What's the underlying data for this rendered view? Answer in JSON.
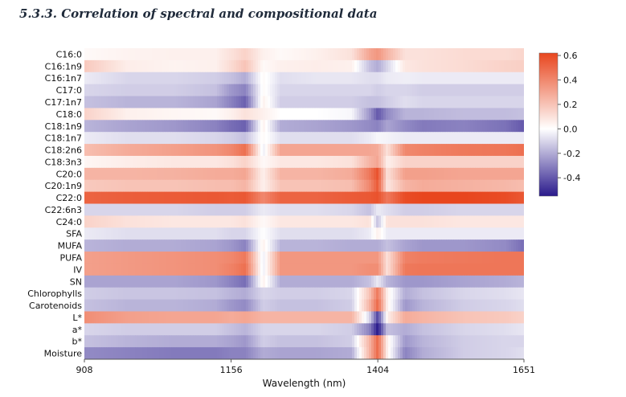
{
  "section": {
    "title": "5.3.3. Correlation of spectral and compositional data"
  },
  "chart_data": {
    "type": "heatmap",
    "title": "",
    "xlabel": "Wavelength (nm)",
    "ylabel": "",
    "xlim": [
      908,
      1651
    ],
    "xticks": [
      908,
      1156,
      1404,
      1651
    ],
    "grid": false,
    "colorbar": {
      "range": [
        -0.55,
        0.62
      ],
      "ticks": [
        -0.4,
        -0.2,
        0.0,
        0.2,
        0.4,
        0.6
      ],
      "tick_labels": [
        "-0.4",
        "-0.2",
        "0.0",
        "0.2",
        "0.4",
        "0.6"
      ],
      "colors": {
        "negative": "#2a1a8c",
        "zero": "#ffffff",
        "positive": "#e8461e"
      },
      "placement": "right"
    },
    "x_sample_wavelengths": [
      908,
      980,
      1060,
      1130,
      1156,
      1180,
      1210,
      1240,
      1300,
      1360,
      1390,
      1404,
      1420,
      1450,
      1480,
      1550,
      1620,
      1651
    ],
    "rows": [
      {
        "name": "C16:0",
        "values": [
          0.02,
          0.04,
          0.05,
          0.05,
          0.1,
          0.15,
          0.05,
          0.02,
          0.05,
          0.1,
          0.3,
          0.35,
          0.25,
          0.1,
          0.1,
          0.12,
          0.12,
          0.14
        ]
      },
      {
        "name": "C16:1n9",
        "values": [
          0.18,
          0.06,
          0.04,
          0.05,
          0.12,
          0.2,
          0.02,
          0.05,
          0.06,
          0.05,
          -0.15,
          -0.2,
          -0.1,
          0.08,
          0.1,
          0.12,
          0.15,
          0.16
        ]
      },
      {
        "name": "C16:1n7",
        "values": [
          -0.05,
          -0.1,
          -0.1,
          -0.12,
          -0.15,
          -0.2,
          0.02,
          -0.08,
          -0.06,
          -0.06,
          -0.08,
          -0.08,
          -0.05,
          -0.04,
          -0.05,
          -0.05,
          -0.05,
          -0.05
        ]
      },
      {
        "name": "C17:0",
        "values": [
          -0.1,
          -0.12,
          -0.12,
          -0.15,
          -0.25,
          -0.3,
          0.02,
          -0.1,
          -0.1,
          -0.1,
          -0.1,
          -0.12,
          -0.1,
          -0.1,
          -0.12,
          -0.12,
          -0.12,
          -0.12
        ]
      },
      {
        "name": "C17:1n7",
        "values": [
          -0.15,
          -0.18,
          -0.18,
          -0.22,
          -0.3,
          -0.38,
          0.05,
          -0.12,
          -0.12,
          -0.12,
          -0.15,
          -0.15,
          -0.12,
          -0.08,
          -0.1,
          -0.1,
          -0.1,
          -0.1
        ]
      },
      {
        "name": "C18:0",
        "values": [
          0.15,
          0.05,
          0.03,
          0.02,
          0.05,
          0.1,
          0.05,
          0.0,
          0.0,
          -0.02,
          -0.25,
          -0.4,
          -0.28,
          -0.18,
          -0.18,
          -0.16,
          -0.16,
          -0.15
        ]
      },
      {
        "name": "C18:1n9",
        "values": [
          -0.18,
          -0.22,
          -0.25,
          -0.3,
          -0.35,
          -0.38,
          0.05,
          -0.2,
          -0.22,
          -0.25,
          -0.28,
          -0.3,
          -0.22,
          -0.28,
          -0.32,
          -0.3,
          -0.34,
          -0.4
        ]
      },
      {
        "name": "C18:1n7",
        "values": [
          -0.05,
          -0.08,
          -0.08,
          -0.1,
          -0.12,
          -0.15,
          0.02,
          -0.08,
          -0.08,
          -0.08,
          -0.05,
          -0.02,
          -0.03,
          -0.05,
          -0.05,
          -0.05,
          -0.05,
          -0.05
        ]
      },
      {
        "name": "C18:2n6",
        "values": [
          0.22,
          0.28,
          0.32,
          0.36,
          0.4,
          0.48,
          -0.05,
          0.3,
          0.3,
          0.3,
          0.3,
          0.28,
          0.1,
          0.4,
          0.42,
          0.45,
          0.46,
          0.48
        ]
      },
      {
        "name": "C18:3n3",
        "values": [
          0.03,
          0.06,
          0.08,
          0.08,
          0.1,
          0.15,
          0.02,
          0.08,
          0.08,
          0.1,
          0.25,
          0.3,
          0.05,
          0.15,
          0.15,
          0.15,
          0.15,
          0.15
        ]
      },
      {
        "name": "C20:0",
        "values": [
          0.25,
          0.25,
          0.26,
          0.28,
          0.28,
          0.3,
          0.05,
          0.25,
          0.25,
          0.28,
          0.45,
          0.58,
          0.1,
          0.32,
          0.32,
          0.3,
          0.3,
          0.3
        ]
      },
      {
        "name": "C20:1n9",
        "values": [
          0.18,
          0.2,
          0.2,
          0.22,
          0.22,
          0.25,
          0.05,
          0.2,
          0.2,
          0.22,
          0.4,
          0.55,
          0.08,
          0.25,
          0.28,
          0.26,
          0.24,
          0.22
        ]
      },
      {
        "name": "C22:0",
        "values": [
          0.52,
          0.54,
          0.55,
          0.56,
          0.55,
          0.56,
          0.4,
          0.52,
          0.52,
          0.55,
          0.56,
          0.58,
          0.45,
          0.6,
          0.62,
          0.62,
          0.6,
          0.56
        ]
      },
      {
        "name": "C22:6n3",
        "values": [
          -0.1,
          -0.1,
          -0.1,
          -0.12,
          -0.12,
          -0.12,
          -0.05,
          -0.08,
          -0.08,
          -0.1,
          -0.15,
          -0.05,
          -0.08,
          -0.12,
          -0.12,
          -0.1,
          -0.1,
          -0.1
        ]
      },
      {
        "name": "C24:0",
        "values": [
          0.15,
          0.1,
          0.08,
          0.08,
          0.08,
          0.1,
          0.02,
          0.08,
          0.08,
          0.08,
          0.1,
          -0.15,
          0.1,
          0.1,
          0.1,
          0.08,
          0.08,
          0.08
        ]
      },
      {
        "name": "SFA",
        "values": [
          -0.05,
          -0.08,
          -0.08,
          -0.08,
          -0.1,
          -0.1,
          0.0,
          -0.08,
          -0.08,
          -0.08,
          -0.05,
          0.05,
          -0.05,
          -0.05,
          -0.05,
          -0.05,
          -0.05,
          -0.05
        ]
      },
      {
        "name": "MUFA",
        "values": [
          -0.18,
          -0.2,
          -0.2,
          -0.22,
          -0.25,
          -0.3,
          0.05,
          -0.18,
          -0.18,
          -0.2,
          -0.2,
          -0.2,
          -0.15,
          -0.22,
          -0.25,
          -0.25,
          -0.28,
          -0.35
        ]
      },
      {
        "name": "PUFA",
        "values": [
          0.32,
          0.34,
          0.36,
          0.38,
          0.4,
          0.45,
          -0.05,
          0.35,
          0.35,
          0.35,
          0.35,
          0.35,
          0.1,
          0.42,
          0.44,
          0.45,
          0.46,
          0.46
        ]
      },
      {
        "name": "IV",
        "values": [
          0.32,
          0.34,
          0.36,
          0.38,
          0.42,
          0.48,
          -0.05,
          0.35,
          0.35,
          0.35,
          0.38,
          0.38,
          0.1,
          0.45,
          0.46,
          0.46,
          0.46,
          0.46
        ]
      },
      {
        "name": "SN",
        "values": [
          -0.22,
          -0.22,
          -0.22,
          -0.25,
          -0.3,
          -0.35,
          0.05,
          -0.2,
          -0.2,
          -0.2,
          -0.15,
          -0.05,
          -0.18,
          -0.25,
          -0.25,
          -0.22,
          -0.2,
          -0.18
        ]
      },
      {
        "name": "Chlorophylls",
        "values": [
          -0.12,
          -0.14,
          -0.14,
          -0.15,
          -0.18,
          -0.2,
          -0.1,
          -0.12,
          -0.12,
          -0.1,
          0.2,
          0.45,
          0.05,
          -0.2,
          -0.15,
          -0.1,
          -0.08,
          -0.06
        ]
      },
      {
        "name": "Carotenoids",
        "values": [
          -0.15,
          -0.18,
          -0.18,
          -0.2,
          -0.25,
          -0.28,
          -0.12,
          -0.15,
          -0.15,
          -0.12,
          0.25,
          0.5,
          0.05,
          -0.25,
          -0.18,
          -0.12,
          -0.1,
          -0.08
        ]
      },
      {
        "name": "L*",
        "values": [
          0.38,
          0.32,
          0.3,
          0.3,
          0.28,
          0.3,
          0.25,
          0.25,
          0.25,
          0.25,
          -0.1,
          -0.45,
          0.05,
          0.28,
          0.25,
          0.2,
          0.18,
          0.15
        ]
      },
      {
        "name": "a*",
        "values": [
          -0.1,
          -0.12,
          -0.12,
          -0.12,
          -0.15,
          -0.18,
          -0.1,
          -0.1,
          -0.1,
          -0.12,
          -0.3,
          -0.55,
          -0.15,
          -0.2,
          -0.15,
          -0.1,
          -0.08,
          -0.06
        ]
      },
      {
        "name": "b*",
        "values": [
          -0.15,
          -0.18,
          -0.2,
          -0.2,
          -0.22,
          -0.25,
          -0.12,
          -0.15,
          -0.15,
          -0.12,
          0.25,
          0.5,
          0.05,
          -0.25,
          -0.18,
          -0.12,
          -0.1,
          -0.1
        ]
      },
      {
        "name": "Moisture",
        "values": [
          -0.28,
          -0.3,
          -0.32,
          -0.32,
          -0.3,
          -0.3,
          -0.2,
          -0.22,
          -0.22,
          -0.2,
          0.25,
          0.5,
          0.05,
          -0.3,
          -0.2,
          -0.12,
          -0.1,
          -0.08
        ]
      }
    ]
  }
}
